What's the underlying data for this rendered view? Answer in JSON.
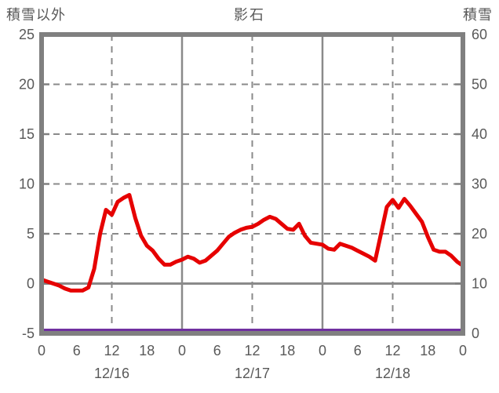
{
  "header": {
    "left_axis_title": "積雪以外",
    "chart_title": "影石",
    "right_axis_title": "積雪"
  },
  "colors": {
    "temperature_line": "#e60000",
    "snow_line": "#7030a0",
    "frame": "#808080",
    "grid": "#8a8a8a",
    "text": "#595959",
    "background": "#ffffff"
  },
  "chart_data": {
    "type": "line",
    "title": "影石",
    "x_axis": {
      "hours_total": 72,
      "hour_tick_step": 6,
      "hour_ticks": [
        "0",
        "6",
        "12",
        "18",
        "0",
        "6",
        "12",
        "18",
        "0",
        "6",
        "12",
        "18",
        "0"
      ],
      "date_labels": [
        "12/16",
        "12/17",
        "12/18"
      ],
      "date_center_hours": [
        12,
        36,
        60
      ]
    },
    "left_axis": {
      "label": "積雪以外",
      "min": -5,
      "max": 25,
      "ticks": [
        25,
        20,
        15,
        10,
        5,
        0,
        -5
      ]
    },
    "right_axis": {
      "label": "積雪",
      "min": 0,
      "max": 60,
      "ticks": [
        60,
        50,
        40,
        30,
        20,
        10,
        0
      ]
    },
    "grid": {
      "horizontal_dashed_values": [
        20,
        15,
        10,
        5
      ],
      "horizontal_solid_values": [
        0
      ],
      "vertical_dashed_hours": [
        12,
        36,
        60
      ],
      "vertical_solid_hours": [
        24,
        48
      ],
      "left_tick_values": [
        20,
        15,
        10,
        5,
        0
      ],
      "right_tick_values": [
        50,
        40,
        30,
        20,
        10
      ]
    },
    "series": [
      {
        "name": "積雪以外",
        "axis": "left",
        "color": "#e60000",
        "x_step_hours": 1,
        "values": [
          0.4,
          0.2,
          0.0,
          -0.2,
          -0.5,
          -0.7,
          -0.7,
          -0.7,
          -0.4,
          1.5,
          5.0,
          7.4,
          6.9,
          8.2,
          8.6,
          8.9,
          6.6,
          4.8,
          3.8,
          3.3,
          2.5,
          1.9,
          1.9,
          2.2,
          2.4,
          2.7,
          2.5,
          2.1,
          2.3,
          2.8,
          3.3,
          4.0,
          4.7,
          5.1,
          5.4,
          5.6,
          5.7,
          6.0,
          6.4,
          6.7,
          6.5,
          6.0,
          5.5,
          5.4,
          6.0,
          4.8,
          4.1,
          4.0,
          3.9,
          3.5,
          3.4,
          4.0,
          3.8,
          3.6,
          3.3,
          3.0,
          2.7,
          2.3,
          5.0,
          7.7,
          8.4,
          7.6,
          8.5,
          7.8,
          7.0,
          6.2,
          4.7,
          3.4,
          3.2,
          3.2,
          2.8,
          2.2,
          1.8
        ]
      },
      {
        "name": "積雪",
        "axis": "right",
        "color": "#7030a0",
        "x_hours": [
          0,
          72
        ],
        "values": [
          0,
          0
        ]
      }
    ]
  }
}
